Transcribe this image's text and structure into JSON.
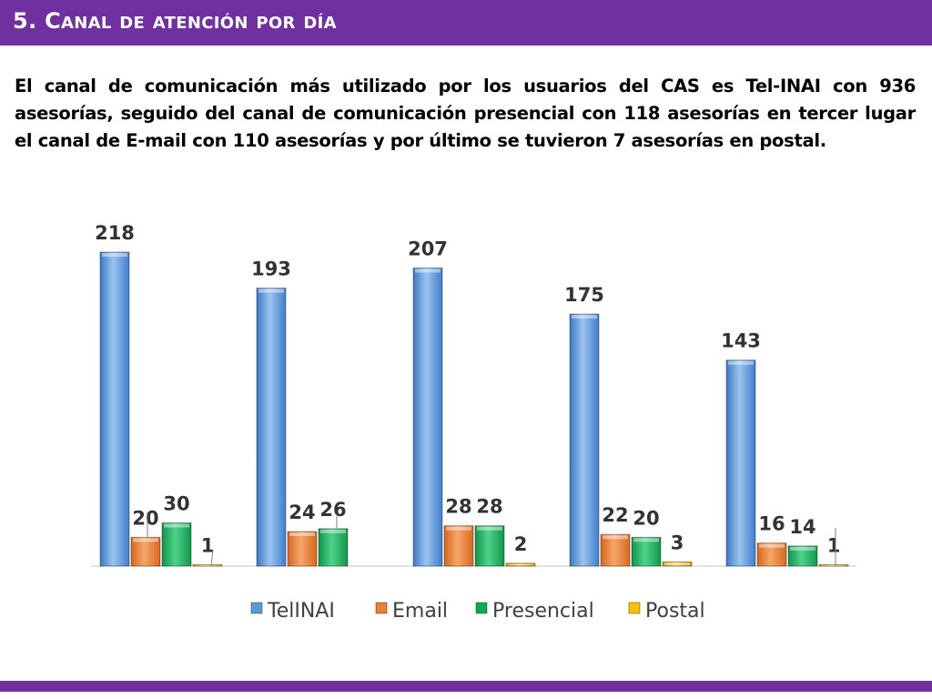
{
  "header": {
    "title": "5. Canal de atención por día"
  },
  "intro": {
    "text": "El canal de comunicación más utilizado por los usuarios del CAS es Tel-INAI con 936 asesorías, seguido del canal de comunicación presencial con 118 asesorías en tercer lugar el canal de  E-mail con 110 asesorías y por último se tuvieron 7 asesorías en postal."
  },
  "colors": {
    "accent": "#7030a0",
    "telinai": "#5b9bd5",
    "email": "#ed7d31",
    "presencial": "#00b050",
    "postal": "#ffc000"
  },
  "chart_data": {
    "type": "bar",
    "categories": [
      "",
      "",
      "",
      "",
      ""
    ],
    "series": [
      {
        "name": "TelINAI",
        "values": [
          218,
          193,
          207,
          175,
          143
        ]
      },
      {
        "name": "Email",
        "values": [
          20,
          24,
          28,
          22,
          16
        ]
      },
      {
        "name": "Presencial",
        "values": [
          30,
          26,
          28,
          20,
          14
        ]
      },
      {
        "name": "Postal",
        "values": [
          1,
          0,
          2,
          3,
          1
        ]
      }
    ],
    "data_labels": [
      [
        "218",
        "20",
        "30",
        "1"
      ],
      [
        "193",
        "24",
        "26",
        ""
      ],
      [
        "207",
        "28",
        "28",
        "2"
      ],
      [
        "175",
        "22",
        "20",
        "3"
      ],
      [
        "143",
        "16",
        "14",
        "1"
      ]
    ],
    "title": "",
    "xlabel": "",
    "ylabel": "",
    "ylim": [
      0,
      218
    ],
    "grid": false,
    "legend": "bottom"
  }
}
